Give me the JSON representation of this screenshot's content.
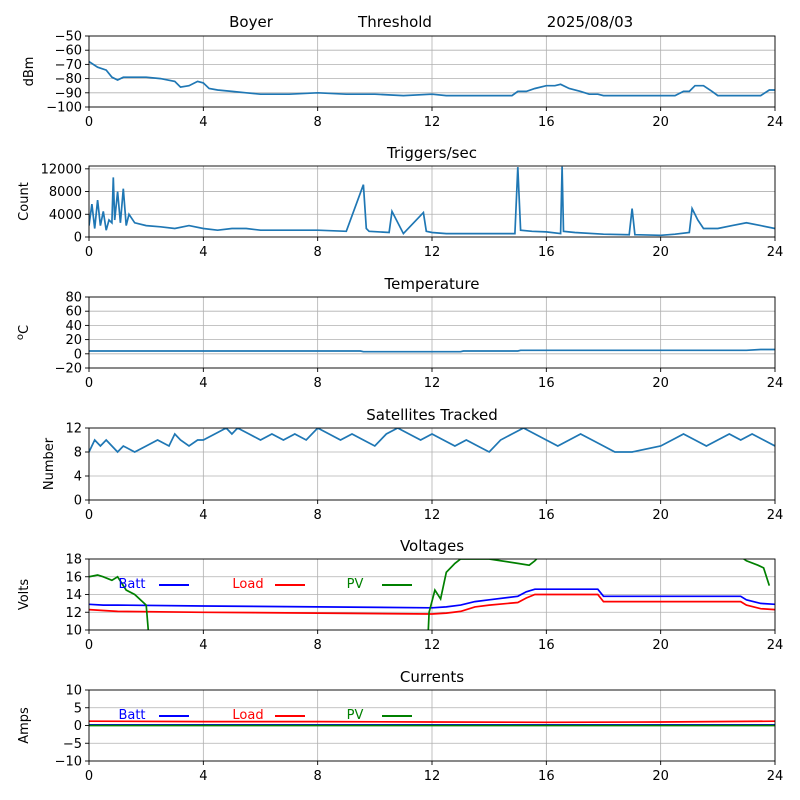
{
  "header": {
    "station": "Boyer",
    "mode": "Threshold",
    "date": "2025/08/03"
  },
  "chart_data": [
    {
      "id": "threshold",
      "type": "line",
      "title": "",
      "ylabel": "dBm",
      "ylim": [
        -100,
        -50
      ],
      "yticks": [
        -100,
        -90,
        -80,
        -70,
        -60,
        -50
      ],
      "xticks": [
        0,
        4,
        8,
        12,
        16,
        20,
        24
      ],
      "xlim": [
        0,
        24
      ],
      "grid": true,
      "series": [
        {
          "color": "#1f77b4",
          "x": [
            0,
            0.3,
            0.6,
            0.8,
            1.0,
            1.2,
            1.5,
            2.0,
            2.5,
            3.0,
            3.2,
            3.5,
            3.8,
            4.0,
            4.2,
            4.5,
            5.0,
            5.5,
            6.0,
            7.0,
            8.0,
            9.0,
            10.0,
            11.0,
            12.0,
            12.5,
            13.0,
            14.0,
            14.8,
            15.0,
            15.3,
            15.6,
            16.0,
            16.3,
            16.5,
            16.8,
            17.2,
            17.5,
            17.8,
            18.0,
            19.0,
            20.0,
            20.5,
            20.8,
            21.0,
            21.2,
            21.5,
            21.8,
            22.0,
            23.0,
            23.5,
            23.8,
            24
          ],
          "y": [
            -68,
            -72,
            -74,
            -79,
            -81,
            -79,
            -79,
            -79,
            -80,
            -82,
            -86,
            -85,
            -82,
            -83,
            -87,
            -88,
            -89,
            -90,
            -91,
            -91,
            -90,
            -91,
            -91,
            -92,
            -91,
            -92,
            -92,
            -92,
            -92,
            -89,
            -89,
            -87,
            -85,
            -85,
            -84,
            -87,
            -89,
            -91,
            -91,
            -92,
            -92,
            -92,
            -92,
            -89,
            -89,
            -85,
            -85,
            -89,
            -92,
            -92,
            -92,
            -88,
            -88
          ]
        }
      ]
    },
    {
      "id": "triggers",
      "type": "line",
      "title": "Triggers/sec",
      "ylabel": "Count",
      "ylim": [
        0,
        12500
      ],
      "yticks": [
        0,
        4000,
        8000,
        12000
      ],
      "xticks": [
        0,
        4,
        8,
        12,
        16,
        20,
        24
      ],
      "xlim": [
        0,
        24
      ],
      "grid": true,
      "series": [
        {
          "color": "#1f77b4",
          "x": [
            0,
            0.1,
            0.2,
            0.3,
            0.4,
            0.5,
            0.6,
            0.7,
            0.8,
            0.85,
            0.9,
            1.0,
            1.1,
            1.2,
            1.3,
            1.4,
            1.6,
            2.0,
            2.5,
            3.0,
            3.5,
            4.0,
            4.5,
            5.0,
            5.5,
            6.0,
            7.0,
            8.0,
            9.0,
            9.6,
            9.7,
            9.8,
            10.5,
            10.6,
            11.0,
            11.7,
            11.8,
            12.0,
            12.5,
            13.0,
            14.0,
            14.9,
            15.0,
            15.1,
            15.5,
            16.0,
            16.5,
            16.55,
            16.6,
            17.0,
            18.0,
            18.9,
            19.0,
            19.1,
            20.0,
            20.5,
            21.0,
            21.1,
            21.3,
            21.5,
            22.0,
            22.5,
            23.0,
            23.5,
            24
          ],
          "y": [
            2000,
            5800,
            1500,
            6500,
            2000,
            4500,
            1200,
            3000,
            2500,
            10500,
            3000,
            8000,
            2500,
            8500,
            2000,
            4000,
            2500,
            2000,
            1800,
            1500,
            2000,
            1500,
            1200,
            1500,
            1500,
            1200,
            1200,
            1200,
            1000,
            9200,
            1500,
            1000,
            800,
            4500,
            600,
            4300,
            1000,
            800,
            600,
            600,
            600,
            600,
            12300,
            1200,
            1000,
            900,
            600,
            12400,
            1000,
            800,
            500,
            400,
            5000,
            400,
            300,
            500,
            800,
            5000,
            3000,
            1500,
            1500,
            2000,
            2500,
            2000,
            1500
          ]
        }
      ]
    },
    {
      "id": "temperature",
      "type": "line",
      "title": "Temperature",
      "ylabel": "oC",
      "ylim": [
        -20,
        80
      ],
      "yticks": [
        -20,
        0,
        20,
        40,
        60,
        80
      ],
      "xticks": [
        0,
        4,
        8,
        12,
        16,
        20,
        24
      ],
      "xlim": [
        0,
        24
      ],
      "grid": true,
      "series": [
        {
          "color": "#1f77b4",
          "x": [
            0,
            4,
            8,
            9.5,
            9.6,
            12,
            13,
            13.1,
            15,
            15.1,
            20,
            23,
            23.5,
            24
          ],
          "y": [
            4,
            4,
            4,
            4,
            3,
            3,
            3,
            4,
            4,
            5,
            5,
            5,
            6,
            6
          ]
        }
      ]
    },
    {
      "id": "satellites",
      "type": "line",
      "title": "Satellites Tracked",
      "ylabel": "Number",
      "ylim": [
        0,
        12
      ],
      "yticks": [
        0,
        4,
        8,
        12
      ],
      "xticks": [
        0,
        4,
        8,
        12,
        16,
        20,
        24
      ],
      "xlim": [
        0,
        24
      ],
      "grid": true,
      "series": [
        {
          "color": "#1f77b4",
          "x": [
            0,
            0.2,
            0.4,
            0.6,
            0.8,
            1.0,
            1.2,
            1.6,
            2.0,
            2.4,
            2.8,
            3.0,
            3.2,
            3.5,
            3.8,
            4.0,
            4.4,
            4.8,
            5.0,
            5.2,
            5.6,
            6.0,
            6.4,
            6.8,
            7.2,
            7.6,
            8.0,
            8.4,
            8.8,
            9.2,
            9.6,
            10.0,
            10.4,
            10.8,
            11.2,
            11.6,
            12.0,
            12.4,
            12.8,
            13.2,
            13.6,
            14.0,
            14.4,
            14.8,
            15.2,
            15.6,
            16.0,
            16.4,
            16.8,
            17.2,
            17.6,
            18.0,
            18.4,
            19.0,
            20.0,
            20.4,
            20.8,
            21.2,
            21.6,
            22.0,
            22.4,
            22.8,
            23.2,
            23.6,
            24
          ],
          "y": [
            8,
            10,
            9,
            10,
            9,
            8,
            9,
            8,
            9,
            10,
            9,
            11,
            10,
            9,
            10,
            10,
            11,
            12,
            11,
            12,
            11,
            10,
            11,
            10,
            11,
            10,
            12,
            11,
            10,
            11,
            10,
            9,
            11,
            12,
            11,
            10,
            11,
            10,
            9,
            10,
            9,
            8,
            10,
            11,
            12,
            11,
            10,
            9,
            10,
            11,
            10,
            9,
            8,
            8,
            9,
            10,
            11,
            10,
            9,
            10,
            11,
            10,
            11,
            10,
            9
          ]
        }
      ]
    },
    {
      "id": "voltages",
      "type": "line",
      "title": "Voltages",
      "ylabel": "Volts",
      "ylim": [
        10,
        18
      ],
      "yticks": [
        10,
        12,
        14,
        16,
        18
      ],
      "xticks": [
        0,
        4,
        8,
        12,
        16,
        20,
        24
      ],
      "xlim": [
        0,
        24
      ],
      "grid": true,
      "legend": "top-left, horizontal",
      "series": [
        {
          "name": "Batt",
          "color": "#0000ff",
          "x": [
            0,
            0.5,
            1,
            4,
            8,
            12,
            12.5,
            13,
            13.5,
            14,
            15,
            15.3,
            15.6,
            16,
            17.8,
            18,
            20,
            22,
            22.8,
            23,
            23.5,
            24
          ],
          "y": [
            12.9,
            12.8,
            12.8,
            12.7,
            12.6,
            12.5,
            12.6,
            12.8,
            13.2,
            13.4,
            13.8,
            14.3,
            14.6,
            14.6,
            14.6,
            13.8,
            13.8,
            13.8,
            13.8,
            13.4,
            13.0,
            12.9
          ]
        },
        {
          "name": "Load",
          "color": "#ff0000",
          "x": [
            0,
            0.5,
            1,
            4,
            8,
            12,
            12.5,
            13,
            13.5,
            14,
            15,
            15.3,
            15.6,
            16,
            17.8,
            18,
            20,
            22,
            22.8,
            23,
            23.5,
            24
          ],
          "y": [
            12.3,
            12.2,
            12.1,
            12.0,
            11.9,
            11.8,
            11.9,
            12.1,
            12.6,
            12.8,
            13.1,
            13.6,
            14.0,
            14.0,
            14.0,
            13.2,
            13.2,
            13.2,
            13.2,
            12.8,
            12.4,
            12.3
          ]
        },
        {
          "name": "PV",
          "color": "#008000",
          "x": [
            0,
            0.3,
            0.5,
            0.8,
            1.0,
            1.3,
            1.6,
            2.0,
            2.1,
            2.2,
            11.8,
            11.9,
            12.1,
            12.3,
            12.5,
            12.8,
            13.0,
            14.0,
            15.0,
            15.4,
            15.6,
            15.8,
            22.7,
            23.0,
            23.4,
            23.6,
            23.8
          ],
          "y": [
            16.0,
            16.2,
            16.0,
            15.6,
            16.0,
            14.5,
            14.0,
            12.8,
            9.0,
            5.0,
            5.0,
            12.0,
            14.5,
            13.5,
            16.5,
            17.5,
            18.0,
            18.0,
            17.5,
            17.3,
            17.8,
            18.5,
            18.5,
            17.8,
            17.3,
            17.0,
            15.0
          ]
        }
      ]
    },
    {
      "id": "currents",
      "type": "line",
      "title": "Currents",
      "ylabel": "Amps",
      "ylim": [
        -10,
        10
      ],
      "yticks": [
        -10,
        -5,
        0,
        5,
        10
      ],
      "xticks": [
        0,
        4,
        8,
        12,
        16,
        20,
        24
      ],
      "xlim": [
        0,
        24
      ],
      "grid": true,
      "legend": "top-left, horizontal",
      "series": [
        {
          "name": "Batt",
          "color": "#0000ff",
          "x": [
            0,
            24
          ],
          "y": [
            0.2,
            0.2
          ]
        },
        {
          "name": "Load",
          "color": "#ff0000",
          "x": [
            0,
            4,
            8,
            12,
            16,
            20,
            24
          ],
          "y": [
            1.2,
            1.1,
            1.1,
            1.0,
            0.9,
            1.0,
            1.2
          ]
        },
        {
          "name": "PV",
          "color": "#008000",
          "x": [
            0,
            24
          ],
          "y": [
            0,
            0
          ]
        }
      ]
    }
  ]
}
